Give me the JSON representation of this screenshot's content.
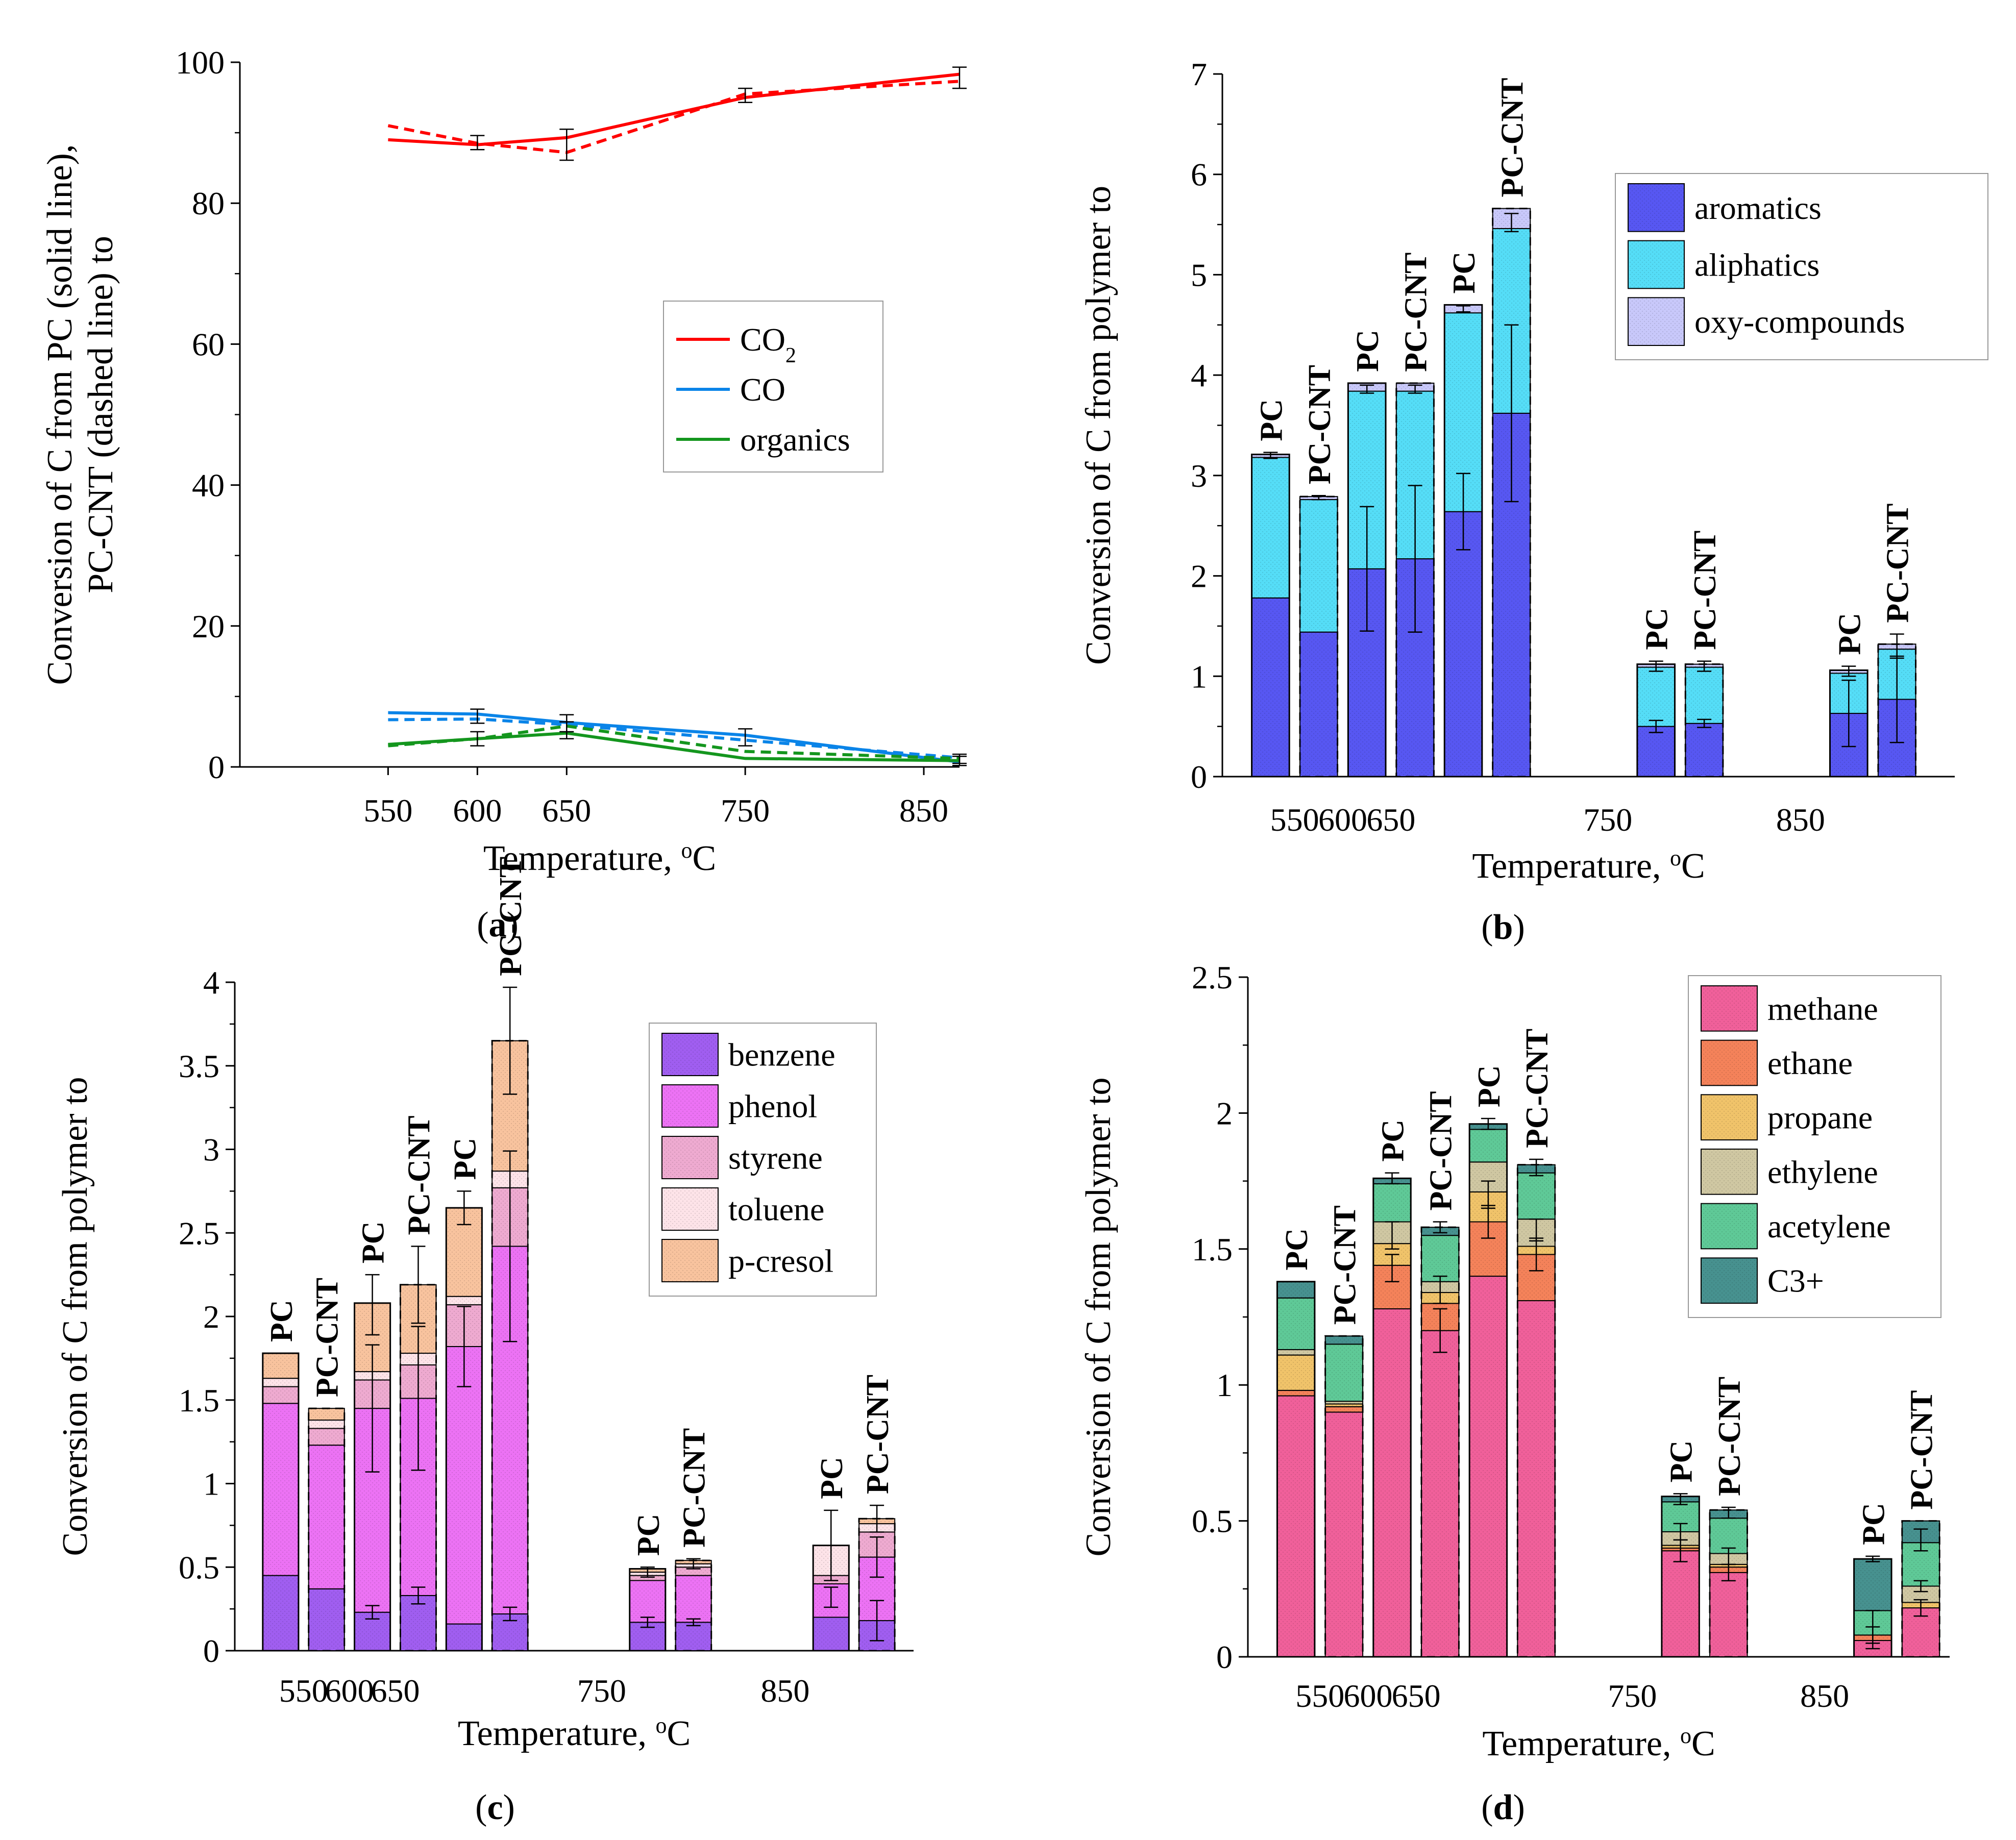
{
  "chart_data": [
    {
      "id": "a",
      "type": "line",
      "caption": "(a)",
      "caption_letter": "a",
      "xlabel": "Temperature, ",
      "xlabel_sup": "o",
      "xlabel_unit": "C",
      "ylabel_line1": "Conversion of C from PC (solid line),",
      "ylabel_line2": "PC-CNT (dashed line) to",
      "x_ticks": [
        "550",
        "600",
        "650",
        "750",
        "850"
      ],
      "x_tick_values": [
        550,
        600,
        650,
        750,
        850
      ],
      "xlim": [
        467,
        870
      ],
      "ylim": [
        0,
        100
      ],
      "y_ticks": [
        "0",
        "20",
        "40",
        "60",
        "80",
        "100"
      ],
      "y_tick_values": [
        0,
        20,
        40,
        60,
        80,
        100
      ],
      "legend": [
        {
          "label": "CO",
          "sub": "2",
          "color": "#ff0000"
        },
        {
          "label": "CO",
          "sub": "",
          "color": "#0a84e8"
        },
        {
          "label": "organics",
          "sub": "",
          "color": "#14961e"
        }
      ],
      "series": [
        {
          "name": "CO2 (PC)",
          "style": "solid",
          "color": "#ff0000",
          "x": [
            550,
            600,
            650,
            750,
            870
          ],
          "y": [
            89,
            88.3,
            89.3,
            95,
            98.3
          ]
        },
        {
          "name": "CO2 (PC-CNT)",
          "style": "dashed",
          "color": "#ff0000",
          "x": [
            550,
            600,
            650,
            750,
            870
          ],
          "y": [
            91,
            88.5,
            87.2,
            95.5,
            97.3
          ]
        },
        {
          "name": "CO (PC)",
          "style": "solid",
          "color": "#0a84e8",
          "x": [
            550,
            600,
            650,
            750,
            870
          ],
          "y": [
            7.7,
            7.5,
            6.3,
            4.5,
            0.7
          ]
        },
        {
          "name": "CO (PC-CNT)",
          "style": "dashed",
          "color": "#0a84e8",
          "x": [
            550,
            600,
            650,
            750,
            870
          ],
          "y": [
            6.7,
            6.8,
            6.0,
            3.8,
            1.3
          ]
        },
        {
          "name": "organics (PC)",
          "style": "solid",
          "color": "#14961e",
          "x": [
            550,
            600,
            650,
            750,
            870
          ],
          "y": [
            3.2,
            4.0,
            4.8,
            1.2,
            0.9
          ]
        },
        {
          "name": "organics (PC-CNT)",
          "style": "dashed",
          "color": "#14961e",
          "x": [
            550,
            600,
            650,
            750,
            870
          ],
          "y": [
            3.0,
            4.0,
            5.8,
            2.2,
            1.2
          ]
        }
      ],
      "error_bars": [
        {
          "x": 600,
          "y": 88.6,
          "e": 1.0
        },
        {
          "x": 650,
          "y": 88.3,
          "e": 2.2
        },
        {
          "x": 750,
          "y": 95.3,
          "e": 1.0
        },
        {
          "x": 870,
          "y": 97.8,
          "e": 1.5
        },
        {
          "x": 600,
          "y": 7.2,
          "e": 1.0
        },
        {
          "x": 650,
          "y": 6.2,
          "e": 1.2
        },
        {
          "x": 750,
          "y": 4.2,
          "e": 1.2
        },
        {
          "x": 870,
          "y": 1.0,
          "e": 0.8
        },
        {
          "x": 600,
          "y": 4.0,
          "e": 1.0
        },
        {
          "x": 650,
          "y": 5.2,
          "e": 1.2
        },
        {
          "x": 870,
          "y": 1.0,
          "e": 0.5
        }
      ]
    },
    {
      "id": "b",
      "type": "stacked-bar",
      "caption": "(b)",
      "caption_letter": "b",
      "xlabel": "Temperature, ",
      "xlabel_sup": "o",
      "xlabel_unit": "C",
      "ylabel_line1": "Conversion of C from polymer to",
      "x_ticks": [
        "550",
        "600",
        "650",
        "750",
        "850"
      ],
      "xlim": [
        0,
        15.2
      ],
      "x_tick_positions": [
        1.5,
        2.5,
        3.5,
        8.0,
        12.0
      ],
      "ylim": [
        0,
        7
      ],
      "y_ticks": [
        "0",
        "1",
        "2",
        "3",
        "4",
        "5",
        "6",
        "7"
      ],
      "y_tick_values": [
        0,
        1,
        2,
        3,
        4,
        5,
        6,
        7
      ],
      "components": [
        {
          "name": "aromatics",
          "color": "#5757f2"
        },
        {
          "name": "aliphatics",
          "color": "#55ddf7"
        },
        {
          "name": "oxy-compounds",
          "color": "#c8c8fa"
        }
      ],
      "bars": [
        {
          "label": "PC",
          "x": 1.0,
          "dashed": false,
          "values": [
            1.78,
            1.4,
            0.03
          ],
          "errors": [
            {
              "y": 3.2,
              "e": 0.03
            }
          ]
        },
        {
          "label": "PC-CNT",
          "x": 2.0,
          "dashed": true,
          "values": [
            1.44,
            1.32,
            0.03
          ],
          "errors": [
            {
              "y": 2.78,
              "e": 0.02
            }
          ]
        },
        {
          "label": "PC",
          "x": 3.0,
          "dashed": false,
          "values": [
            2.07,
            1.77,
            0.08
          ],
          "errors": [
            {
              "y": 2.07,
              "e": 0.62
            },
            {
              "y": 3.86,
              "e": 0.04
            }
          ]
        },
        {
          "label": "PC-CNT",
          "x": 4.0,
          "dashed": true,
          "values": [
            2.17,
            1.67,
            0.08
          ],
          "errors": [
            {
              "y": 2.17,
              "e": 0.73
            },
            {
              "y": 3.86,
              "e": 0.04
            }
          ]
        },
        {
          "label": "PC",
          "x": 5.0,
          "dashed": false,
          "values": [
            2.64,
            1.98,
            0.08
          ],
          "errors": [
            {
              "y": 2.64,
              "e": 0.38
            },
            {
              "y": 4.66,
              "e": 0.03
            }
          ]
        },
        {
          "label": "PC-CNT",
          "x": 6.0,
          "dashed": true,
          "values": [
            3.62,
            1.84,
            0.2
          ],
          "errors": [
            {
              "y": 3.62,
              "e": 0.88
            },
            {
              "y": 5.52,
              "e": 0.09
            }
          ]
        },
        {
          "label": "PC",
          "x": 9.0,
          "dashed": false,
          "values": [
            0.5,
            0.59,
            0.03
          ],
          "errors": [
            {
              "y": 0.5,
              "e": 0.06
            },
            {
              "y": 1.1,
              "e": 0.05
            }
          ]
        },
        {
          "label": "PC-CNT",
          "x": 10.0,
          "dashed": true,
          "values": [
            0.53,
            0.56,
            0.03
          ],
          "errors": [
            {
              "y": 0.53,
              "e": 0.04
            },
            {
              "y": 1.1,
              "e": 0.05
            }
          ]
        },
        {
          "label": "PC",
          "x": 13.0,
          "dashed": false,
          "values": [
            0.63,
            0.4,
            0.03
          ],
          "errors": [
            {
              "y": 0.63,
              "e": 0.33
            },
            {
              "y": 1.05,
              "e": 0.05
            }
          ]
        },
        {
          "label": "PC-CNT",
          "x": 14.0,
          "dashed": true,
          "values": [
            0.77,
            0.5,
            0.05
          ],
          "errors": [
            {
              "y": 0.77,
              "e": 0.43
            },
            {
              "y": 1.3,
              "e": 0.12
            }
          ]
        }
      ]
    },
    {
      "id": "c",
      "type": "stacked-bar",
      "caption": "(c)",
      "caption_letter": "c",
      "xlabel": "Temperature, ",
      "xlabel_sup": "o",
      "xlabel_unit": "C",
      "ylabel_line1": "Conversion of C from polymer to",
      "x_ticks": [
        "550",
        "600",
        "650",
        "750",
        "850"
      ],
      "xlim": [
        0,
        14.8
      ],
      "x_tick_positions": [
        1.5,
        2.5,
        3.5,
        8.0,
        12.0
      ],
      "ylim": [
        0,
        4
      ],
      "y_ticks": [
        "0",
        "0.5",
        "1",
        "1.5",
        "2",
        "2.5",
        "3",
        "3.5",
        "4"
      ],
      "y_tick_values": [
        0,
        0.5,
        1,
        1.5,
        2,
        2.5,
        3,
        3.5,
        4
      ],
      "components": [
        {
          "name": "benzene",
          "color": "#a05ef0"
        },
        {
          "name": "phenol",
          "color": "#ec72f4"
        },
        {
          "name": "styrene",
          "color": "#eeaad0"
        },
        {
          "name": "toluene",
          "color": "#fde3e8"
        },
        {
          "name": "p-cresol",
          "color": "#f8c39e"
        }
      ],
      "bars": [
        {
          "label": "PC",
          "x": 1.0,
          "dashed": false,
          "values": [
            0.45,
            1.03,
            0.1,
            0.05,
            0.15
          ],
          "errors": []
        },
        {
          "label": "PC-CNT",
          "x": 2.0,
          "dashed": true,
          "values": [
            0.37,
            0.86,
            0.1,
            0.05,
            0.07
          ],
          "errors": []
        },
        {
          "label": "PC",
          "x": 3.0,
          "dashed": false,
          "values": [
            0.23,
            1.22,
            0.17,
            0.05,
            0.41
          ],
          "errors": [
            {
              "y": 0.23,
              "e": 0.04
            },
            {
              "y": 1.45,
              "e": 0.38
            },
            {
              "y": 2.07,
              "e": 0.18
            }
          ]
        },
        {
          "label": "PC-CNT",
          "x": 4.0,
          "dashed": true,
          "values": [
            0.33,
            1.18,
            0.2,
            0.07,
            0.41
          ],
          "errors": [
            {
              "y": 0.33,
              "e": 0.05
            },
            {
              "y": 1.51,
              "e": 0.43
            },
            {
              "y": 2.19,
              "e": 0.23
            }
          ]
        },
        {
          "label": "PC",
          "x": 5.0,
          "dashed": false,
          "values": [
            0.16,
            1.66,
            0.25,
            0.05,
            0.53
          ],
          "errors": [
            {
              "y": 1.82,
              "e": 0.24
            },
            {
              "y": 2.65,
              "e": 0.1
            }
          ]
        },
        {
          "label": "PC-CNT",
          "x": 6.0,
          "dashed": true,
          "values": [
            0.22,
            2.2,
            0.35,
            0.1,
            0.78
          ],
          "errors": [
            {
              "y": 0.22,
              "e": 0.04
            },
            {
              "y": 2.42,
              "e": 0.57
            },
            {
              "y": 3.65,
              "e": 0.32
            }
          ]
        },
        {
          "label": "PC",
          "x": 9.0,
          "dashed": false,
          "values": [
            0.17,
            0.25,
            0.03,
            0.02,
            0.02
          ],
          "errors": [
            {
              "y": 0.17,
              "e": 0.03
            },
            {
              "y": 0.47,
              "e": 0.03
            }
          ]
        },
        {
          "label": "PC-CNT",
          "x": 10.0,
          "dashed": true,
          "values": [
            0.17,
            0.28,
            0.05,
            0.02,
            0.02
          ],
          "errors": [
            {
              "y": 0.17,
              "e": 0.02
            },
            {
              "y": 0.52,
              "e": 0.03
            }
          ]
        },
        {
          "label": "PC",
          "x": 13.0,
          "dashed": false,
          "values": [
            0.2,
            0.2,
            0.05,
            0.18,
            0.0
          ],
          "errors": [
            {
              "y": 0.63,
              "e": 0.21
            },
            {
              "y": 0.32,
              "e": 0.06
            }
          ]
        },
        {
          "label": "PC-CNT",
          "x": 14.0,
          "dashed": true,
          "values": [
            0.18,
            0.38,
            0.15,
            0.05,
            0.03
          ],
          "errors": [
            {
              "y": 0.18,
              "e": 0.12
            },
            {
              "y": 0.56,
              "e": 0.12
            },
            {
              "y": 0.79,
              "e": 0.08
            }
          ]
        }
      ]
    },
    {
      "id": "d",
      "type": "stacked-bar",
      "caption": "(d)",
      "caption_letter": "d",
      "xlabel": "Temperature, ",
      "xlabel_sup": "o",
      "xlabel_unit": "C",
      "ylabel_line1": "Conversion of C from polymer to",
      "x_ticks": [
        "550",
        "600",
        "650",
        "750",
        "850"
      ],
      "xlim": [
        0,
        14.6
      ],
      "x_tick_positions": [
        1.5,
        2.5,
        3.5,
        8.0,
        12.0
      ],
      "ylim": [
        0,
        2.5
      ],
      "y_ticks": [
        "0",
        "0.5",
        "1",
        "1.5",
        "2",
        "2.5"
      ],
      "y_tick_values": [
        0,
        0.5,
        1,
        1.5,
        2,
        2.5
      ],
      "components": [
        {
          "name": "methane",
          "color": "#f0609a"
        },
        {
          "name": "ethane",
          "color": "#f4825a"
        },
        {
          "name": "propane",
          "color": "#f0c36a"
        },
        {
          "name": "ethylene",
          "color": "#cfc7a2"
        },
        {
          "name": "acetylene",
          "color": "#5fc997"
        },
        {
          "name": "C3+",
          "color": "#47918f"
        }
      ],
      "bars": [
        {
          "label": "PC",
          "x": 1.0,
          "dashed": false,
          "values": [
            0.96,
            0.02,
            0.13,
            0.02,
            0.19,
            0.06
          ],
          "errors": []
        },
        {
          "label": "PC-CNT",
          "x": 2.0,
          "dashed": true,
          "values": [
            0.9,
            0.02,
            0.01,
            0.01,
            0.21,
            0.03
          ],
          "errors": []
        },
        {
          "label": "PC",
          "x": 3.0,
          "dashed": false,
          "values": [
            1.28,
            0.16,
            0.08,
            0.08,
            0.14,
            0.02
          ],
          "errors": [
            {
              "y": 1.43,
              "e": 0.05
            },
            {
              "y": 1.55,
              "e": 0.05
            },
            {
              "y": 1.76,
              "e": 0.02
            }
          ]
        },
        {
          "label": "PC-CNT",
          "x": 4.0,
          "dashed": true,
          "values": [
            1.2,
            0.1,
            0.04,
            0.04,
            0.17,
            0.03
          ],
          "errors": [
            {
              "y": 1.2,
              "e": 0.08
            },
            {
              "y": 1.35,
              "e": 0.05
            },
            {
              "y": 1.58,
              "e": 0.02
            }
          ]
        },
        {
          "label": "PC",
          "x": 5.0,
          "dashed": false,
          "values": [
            1.4,
            0.2,
            0.11,
            0.11,
            0.12,
            0.02
          ],
          "errors": [
            {
              "y": 1.6,
              "e": 0.06
            },
            {
              "y": 1.7,
              "e": 0.05
            },
            {
              "y": 1.96,
              "e": 0.02
            }
          ]
        },
        {
          "label": "PC-CNT",
          "x": 6.0,
          "dashed": true,
          "values": [
            1.31,
            0.17,
            0.03,
            0.1,
            0.17,
            0.03
          ],
          "errors": [
            {
              "y": 1.48,
              "e": 0.06
            },
            {
              "y": 1.57,
              "e": 0.04
            },
            {
              "y": 1.8,
              "e": 0.03
            }
          ]
        },
        {
          "label": "PC",
          "x": 9.0,
          "dashed": false,
          "values": [
            0.39,
            0.01,
            0.01,
            0.05,
            0.11,
            0.02
          ],
          "errors": [
            {
              "y": 0.39,
              "e": 0.04
            },
            {
              "y": 0.46,
              "e": 0.03
            },
            {
              "y": 0.58,
              "e": 0.02
            }
          ]
        },
        {
          "label": "PC-CNT",
          "x": 10.0,
          "dashed": true,
          "values": [
            0.31,
            0.02,
            0.01,
            0.04,
            0.13,
            0.03
          ],
          "errors": [
            {
              "y": 0.31,
              "e": 0.03
            },
            {
              "y": 0.37,
              "e": 0.03
            },
            {
              "y": 0.53,
              "e": 0.02
            }
          ]
        },
        {
          "label": "PC",
          "x": 13.0,
          "dashed": false,
          "values": [
            0.06,
            0.02,
            0.0,
            0.0,
            0.09,
            0.19
          ],
          "errors": [
            {
              "y": 0.08,
              "e": 0.03
            },
            {
              "y": 0.1,
              "e": 0.07
            },
            {
              "y": 0.36,
              "e": 0.01
            }
          ]
        },
        {
          "label": "PC-CNT",
          "x": 14.0,
          "dashed": true,
          "values": [
            0.18,
            0.0,
            0.02,
            0.06,
            0.16,
            0.08
          ],
          "errors": [
            {
              "y": 0.18,
              "e": 0.03
            },
            {
              "y": 0.26,
              "e": 0.02
            },
            {
              "y": 0.43,
              "e": 0.04
            }
          ]
        }
      ]
    }
  ]
}
